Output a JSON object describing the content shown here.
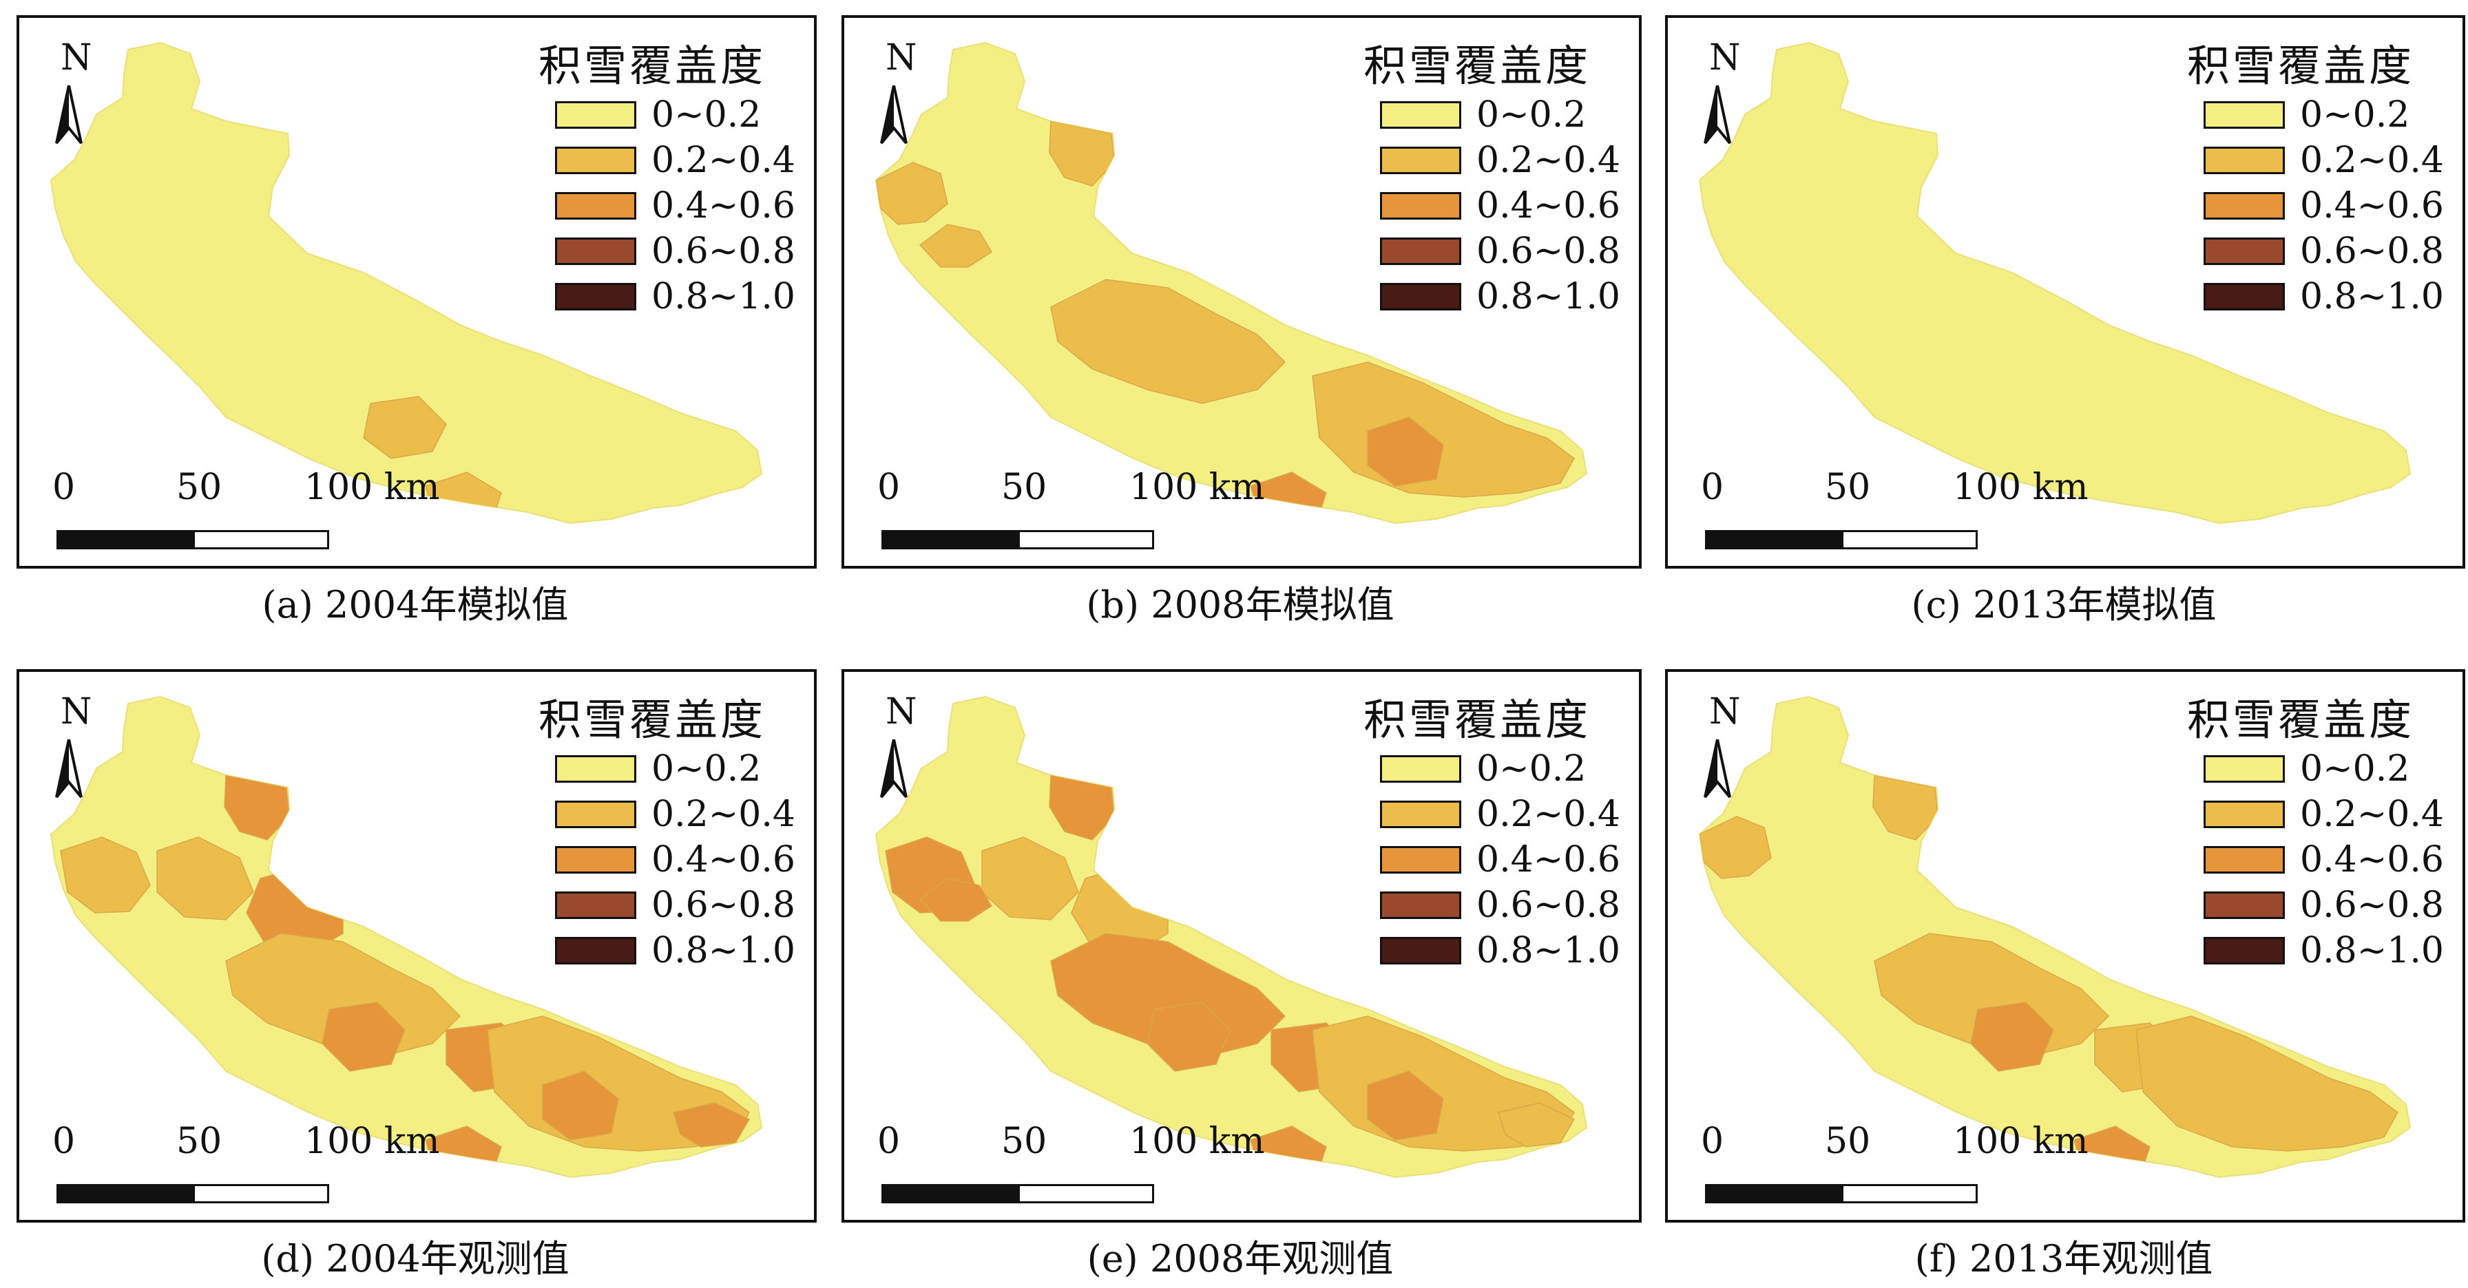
{
  "legend": {
    "title": "积雪覆盖度",
    "classes": [
      {
        "label": "0~0.2",
        "color": "#f3ef82"
      },
      {
        "label": "0.2~0.4",
        "color": "#ecbd4b"
      },
      {
        "label": "0.4~0.6",
        "color": "#e6953a"
      },
      {
        "label": "0.6~0.8",
        "color": "#9a4a2c"
      },
      {
        "label": "0.8~1.0",
        "color": "#4a1a16"
      }
    ]
  },
  "north_arrow": {
    "label": "N",
    "icon": "north-arrow-icon"
  },
  "scalebar": {
    "ticks": [
      "0",
      "50",
      "100 km"
    ]
  },
  "panels": [
    {
      "caption": "(a) 2004年模拟值"
    },
    {
      "caption": "(b) 2008年模拟值"
    },
    {
      "caption": "(c) 2013年模拟值"
    },
    {
      "caption": "(d) 2004年观测值"
    },
    {
      "caption": "(e) 2008年观测值"
    },
    {
      "caption": "(f) 2013年观测值"
    }
  ]
}
